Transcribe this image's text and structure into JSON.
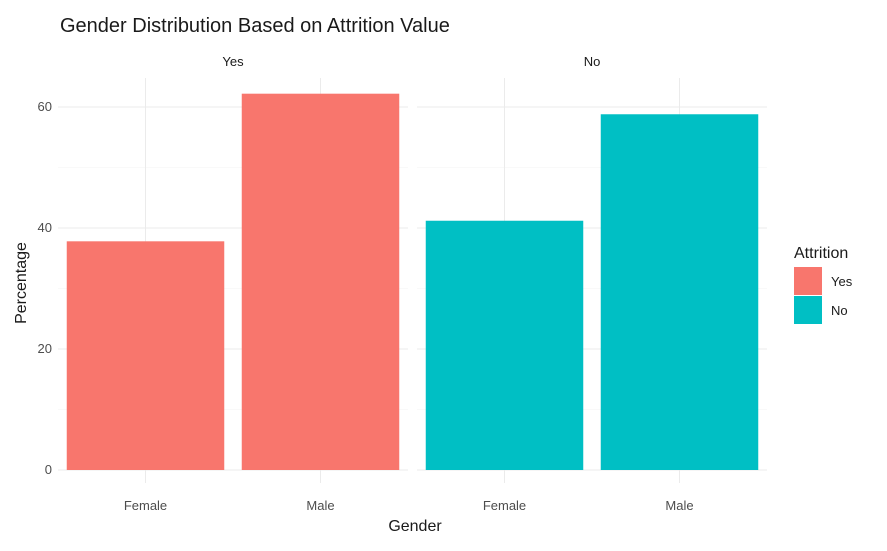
{
  "chart_data": {
    "type": "bar",
    "title": "Gender Distribution Based on Attrition Value",
    "xlabel": "Gender",
    "ylabel": "Percentage",
    "categories": [
      "Female",
      "Male"
    ],
    "ylim": [
      0,
      62
    ],
    "yticks": [
      0,
      20,
      40,
      60
    ],
    "grid": true,
    "facets": [
      {
        "label": "Yes",
        "color": "#F8766D",
        "values": [
          37.8,
          62.2
        ]
      },
      {
        "label": "No",
        "color": "#00BFC4",
        "values": [
          41.2,
          58.8
        ]
      }
    ],
    "legend": {
      "title": "Attrition",
      "position": "right",
      "items": [
        {
          "label": "Yes",
          "color": "#F8766D"
        },
        {
          "label": "No",
          "color": "#00BFC4"
        }
      ]
    }
  }
}
